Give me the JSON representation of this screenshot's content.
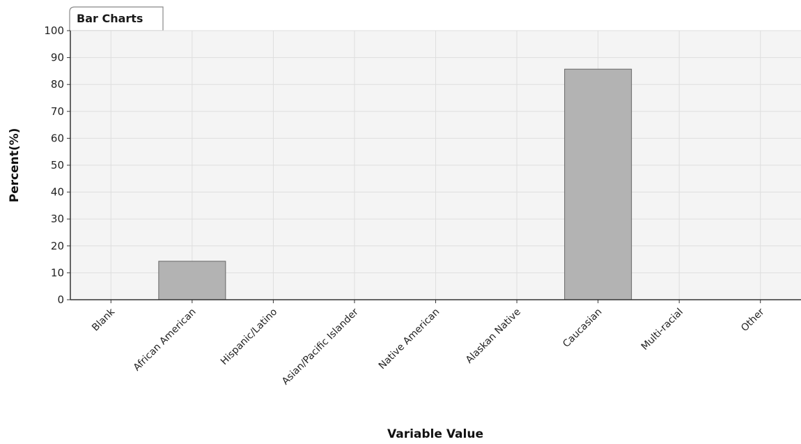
{
  "tab": {
    "label": "Bar Charts"
  },
  "chart_data": {
    "type": "bar",
    "title": "",
    "xlabel": "Variable Value",
    "ylabel": "Percent(%)",
    "ylim": [
      0,
      100
    ],
    "yticks": [
      0,
      10,
      20,
      30,
      40,
      50,
      60,
      70,
      80,
      90,
      100
    ],
    "grid": true,
    "categories": [
      "Blank",
      "African American",
      "Hispanic/Latino",
      "Asian/Pacific Islander",
      "Native American",
      "Alaskan Native",
      "Caucasian",
      "Multi-racial",
      "Other"
    ],
    "values": [
      0,
      14.3,
      0,
      0,
      0,
      0,
      85.7,
      0,
      0
    ]
  },
  "colors": {
    "bar_fill": "#b3b3b3",
    "bar_stroke": "#666666",
    "plot_background": "#f4f4f4",
    "gridline": "#dedede",
    "axis": "#333333"
  }
}
